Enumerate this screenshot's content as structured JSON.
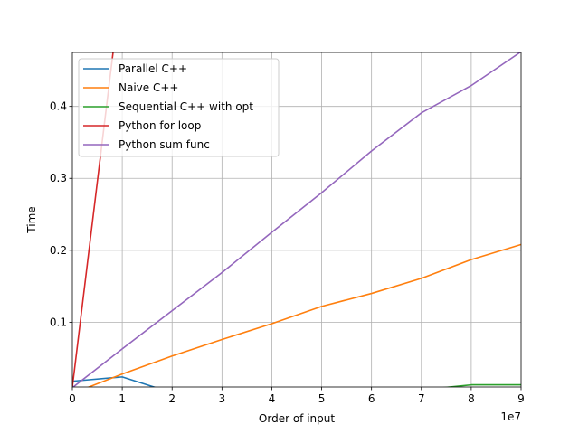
{
  "chart_data": {
    "type": "line",
    "title": "",
    "xlabel": "Order of input",
    "ylabel": "Time",
    "x_offset_label": "1e7",
    "xlim": [
      0,
      9
    ],
    "ylim": [
      0.01,
      0.475
    ],
    "grid": true,
    "legend_position": "top-left",
    "xticks": [
      0,
      1,
      2,
      3,
      4,
      5,
      6,
      7,
      8,
      9
    ],
    "xtick_labels": [
      "0",
      "1",
      "2",
      "3",
      "4",
      "5",
      "6",
      "7",
      "8",
      "9"
    ],
    "yticks": [
      0.1,
      0.2,
      0.3,
      0.4
    ],
    "ytick_labels": [
      "0.1",
      "0.2",
      "0.3",
      "0.4"
    ],
    "series": [
      {
        "name": "Parallel C++",
        "color": "#1f77b4",
        "x": [
          0,
          1,
          2,
          3,
          4,
          5,
          6,
          7,
          8,
          9
        ],
        "y": [
          0.018,
          0.024,
          0.002,
          0.002,
          0.002,
          0.002,
          0.002,
          0.002,
          0.002,
          0.002
        ]
      },
      {
        "name": "Naive C++",
        "color": "#ff7f0e",
        "x": [
          0,
          1,
          2,
          3,
          4,
          5,
          6,
          7,
          8,
          9
        ],
        "y": [
          0.001,
          0.028,
          0.053,
          0.076,
          0.098,
          0.122,
          0.14,
          0.161,
          0.187,
          0.208
        ]
      },
      {
        "name": "Sequential C++ with opt",
        "color": "#2ca02c",
        "x": [
          0,
          1,
          2,
          3,
          4,
          5,
          6,
          7,
          8,
          9
        ],
        "y": [
          0.001,
          0.002,
          0.002,
          0.002,
          0.002,
          0.003,
          0.004,
          0.006,
          0.013,
          0.013
        ]
      },
      {
        "name": "Python for loop",
        "color": "#d62728",
        "x": [
          0,
          1
        ],
        "y": [
          0.01,
          0.58
        ]
      },
      {
        "name": "Python sum func",
        "color": "#9467bd",
        "x": [
          0,
          1,
          2,
          3,
          4,
          5,
          6,
          7,
          8,
          9
        ],
        "y": [
          0.009,
          0.063,
          0.116,
          0.169,
          0.225,
          0.28,
          0.338,
          0.391,
          0.429,
          0.476
        ]
      }
    ]
  }
}
